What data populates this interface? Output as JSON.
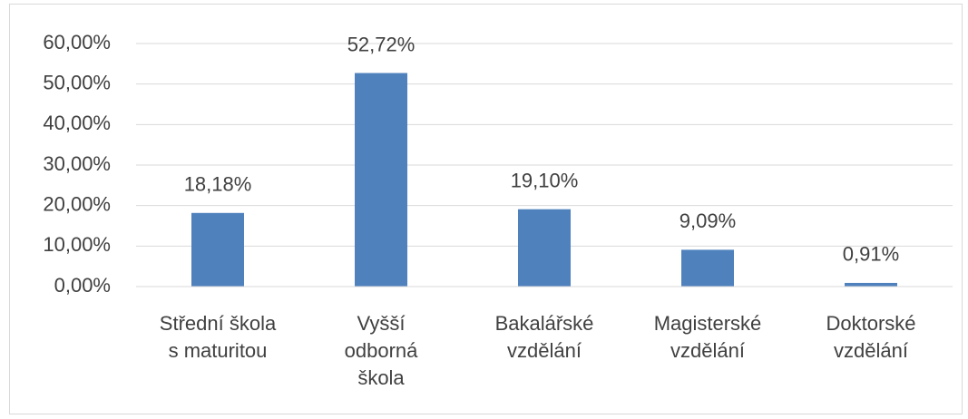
{
  "chart_data": {
    "type": "bar",
    "categories": [
      "Střední škola\ns maturitou",
      "Vyšší\nodborná\nškola",
      "Bakalářské\nvzdělání",
      "Magisterské\nvzdělání",
      "Doktorské\nvzdělání"
    ],
    "values": [
      18.18,
      52.72,
      19.1,
      9.09,
      0.91
    ],
    "value_labels": [
      "18,18%",
      "52,72%",
      "19,10%",
      "9,09%",
      "0,91%"
    ],
    "color": "#4f81bd",
    "ylim": [
      0,
      60
    ],
    "yticks": [
      {
        "value": 0,
        "label": "0,00%"
      },
      {
        "value": 10,
        "label": "10,00%"
      },
      {
        "value": 20,
        "label": "20,00%"
      },
      {
        "value": 30,
        "label": "30,00%"
      },
      {
        "value": 40,
        "label": "40,00%"
      },
      {
        "value": 50,
        "label": "50,00%"
      },
      {
        "value": 60,
        "label": "60,00%"
      }
    ],
    "grid": true
  }
}
